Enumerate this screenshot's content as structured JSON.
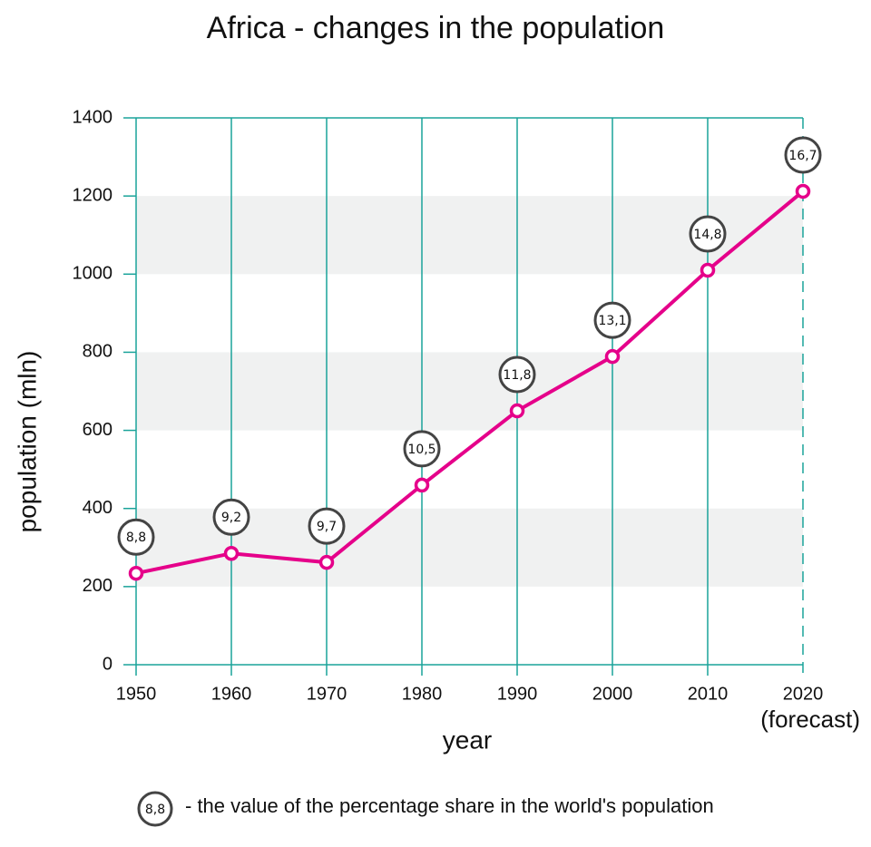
{
  "chart_data": {
    "type": "line",
    "title": "Africa - changes in the population",
    "x_label": "year",
    "y_label": "population (mln)",
    "x": [
      1950,
      1960,
      1970,
      1980,
      1990,
      2000,
      2010,
      2020
    ],
    "series": [
      {
        "name": "population",
        "color": "#e5008a",
        "values": [
          234,
          285,
          262,
          460,
          650,
          789,
          1010,
          1212
        ]
      }
    ],
    "share": {
      "values": [
        8.8,
        9.2,
        9.7,
        10.5,
        11.8,
        13.1,
        14.8,
        16.7
      ],
      "value_labels": [
        "8,8",
        "9,2",
        "9,7",
        "10,5",
        "11,8",
        "13,1",
        "14,8",
        "16,7"
      ]
    },
    "xlim": [
      1950,
      2020
    ],
    "xticks": [
      1950,
      1960,
      1970,
      1980,
      1990,
      2000,
      2010,
      2020
    ],
    "x_annotation": "(forecast)",
    "dashed_gridlines_x": [
      2020
    ],
    "ylim": [
      0,
      1400
    ],
    "yticks": [
      0,
      200,
      400,
      600,
      800,
      1000,
      1200,
      1400
    ],
    "grid_color": "#1aa39a",
    "banded_grid": true,
    "band_color": "#f0f1f1",
    "legend": {
      "sample": "8,8",
      "text": "- the value of the percentage share in the world's population"
    }
  }
}
